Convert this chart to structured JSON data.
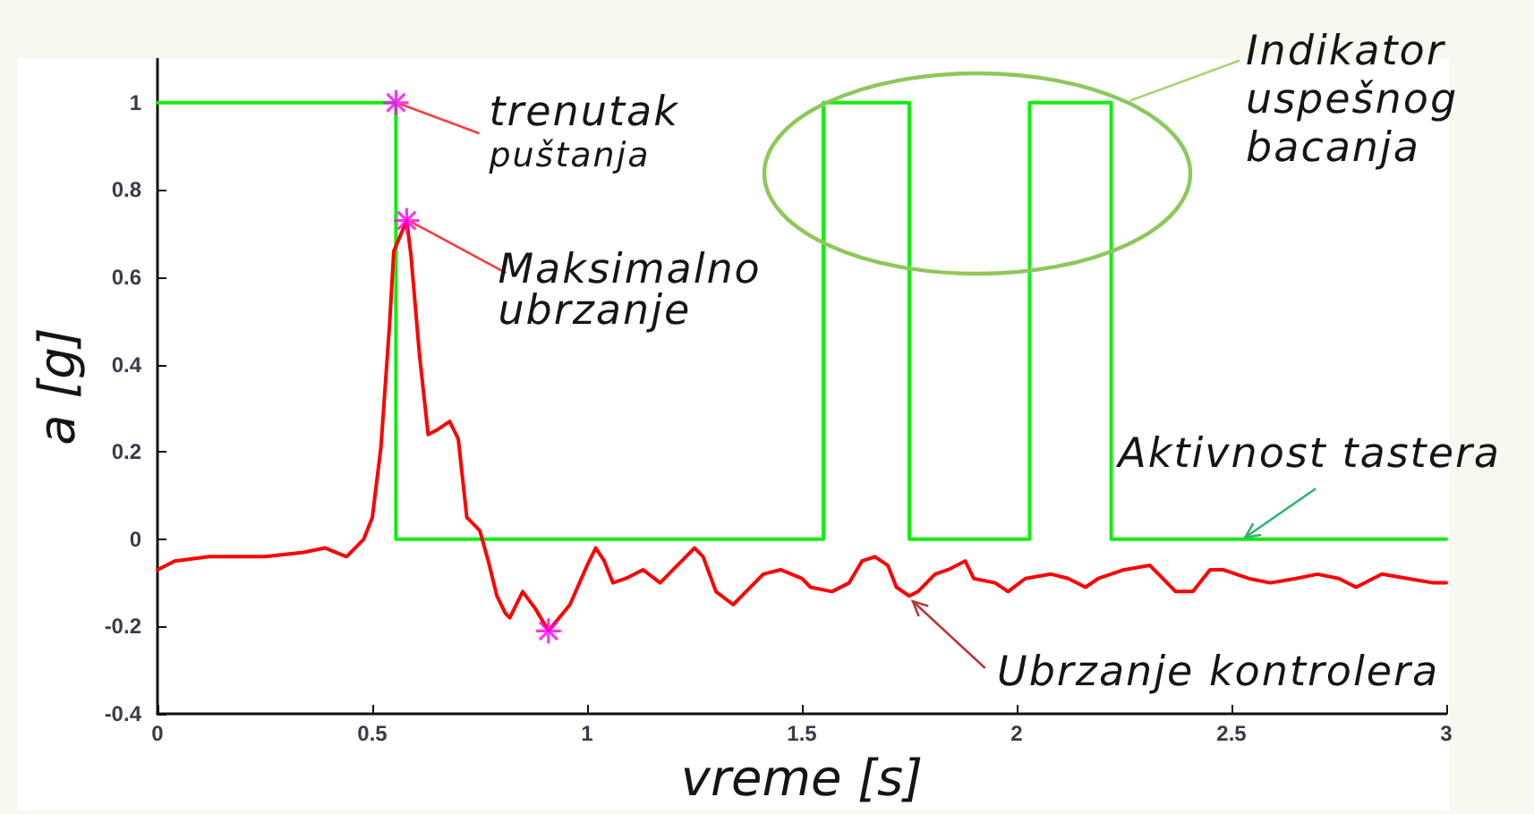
{
  "chart_data": {
    "type": "line",
    "xlabel": "vreme [s]",
    "ylabel": "a [g]",
    "xlim": [
      0,
      3
    ],
    "xticks": [
      0,
      0.5,
      1,
      1.5,
      2,
      2.5,
      3
    ],
    "ylim": [
      -0.4,
      1.1
    ],
    "yticks": [
      -0.4,
      -0.2,
      0,
      0.2,
      0.4,
      0.6,
      0.8,
      1
    ],
    "grid": false,
    "legend": false,
    "marker": "none",
    "line_style": "solid",
    "series": [
      {
        "name": "Aktivnost tastera",
        "type": "step",
        "color": "#11ee11",
        "x": [
          0,
          0.555,
          1.55,
          1.75,
          2.03,
          2.22,
          3
        ],
        "values": [
          1,
          0,
          1,
          0,
          1,
          0,
          0
        ]
      },
      {
        "name": "Ubrzanje kontrolera",
        "type": "line",
        "color": "#ff0000",
        "x": [
          0,
          0.04,
          0.12,
          0.18,
          0.25,
          0.34,
          0.39,
          0.44,
          0.48,
          0.5,
          0.52,
          0.54,
          0.55,
          0.58,
          0.59,
          0.61,
          0.63,
          0.65,
          0.68,
          0.7,
          0.72,
          0.75,
          0.77,
          0.79,
          0.81,
          0.82,
          0.85,
          0.88,
          0.91,
          0.96,
          1.0,
          1.02,
          1.04,
          1.06,
          1.09,
          1.13,
          1.17,
          1.2,
          1.25,
          1.27,
          1.3,
          1.34,
          1.37,
          1.41,
          1.45,
          1.5,
          1.52,
          1.57,
          1.61,
          1.64,
          1.67,
          1.7,
          1.72,
          1.75,
          1.77,
          1.81,
          1.84,
          1.88,
          1.9,
          1.95,
          1.98,
          2.02,
          2.08,
          2.12,
          2.16,
          2.19,
          2.25,
          2.31,
          2.34,
          2.37,
          2.41,
          2.45,
          2.48,
          2.54,
          2.59,
          2.65,
          2.7,
          2.75,
          2.79,
          2.85,
          2.91,
          2.97,
          3
        ],
        "values": [
          -0.07,
          -0.05,
          -0.04,
          -0.04,
          -0.04,
          -0.03,
          -0.02,
          -0.04,
          0.0,
          0.05,
          0.21,
          0.49,
          0.66,
          0.73,
          0.65,
          0.42,
          0.24,
          0.25,
          0.27,
          0.23,
          0.05,
          0.02,
          -0.05,
          -0.13,
          -0.17,
          -0.18,
          -0.12,
          -0.16,
          -0.21,
          -0.15,
          -0.06,
          -0.02,
          -0.05,
          -0.1,
          -0.09,
          -0.07,
          -0.1,
          -0.07,
          -0.02,
          -0.04,
          -0.12,
          -0.15,
          -0.12,
          -0.08,
          -0.07,
          -0.09,
          -0.11,
          -0.12,
          -0.1,
          -0.05,
          -0.04,
          -0.06,
          -0.11,
          -0.13,
          -0.12,
          -0.08,
          -0.07,
          -0.05,
          -0.09,
          -0.1,
          -0.12,
          -0.09,
          -0.08,
          -0.09,
          -0.11,
          -0.09,
          -0.07,
          -0.06,
          -0.09,
          -0.12,
          -0.12,
          -0.07,
          -0.07,
          -0.09,
          -0.1,
          -0.09,
          -0.08,
          -0.09,
          -0.11,
          -0.08,
          -0.09,
          -0.1,
          -0.1
        ]
      },
      {
        "type": "scatter",
        "color": "#ff00ff",
        "marker": "cross",
        "x": [
          0.555,
          0.58,
          0.91
        ],
        "values": [
          1,
          0.73,
          -0.21
        ]
      }
    ],
    "annotations": [
      {
        "text": "trenutak\npuštanja",
        "x": 0.555,
        "y": 1
      },
      {
        "text": "Maksimalno\nubrzanje",
        "x": 0.58,
        "y": 0.73
      },
      "Indikator\nuspešnog\nbacanja"
    ]
  }
}
